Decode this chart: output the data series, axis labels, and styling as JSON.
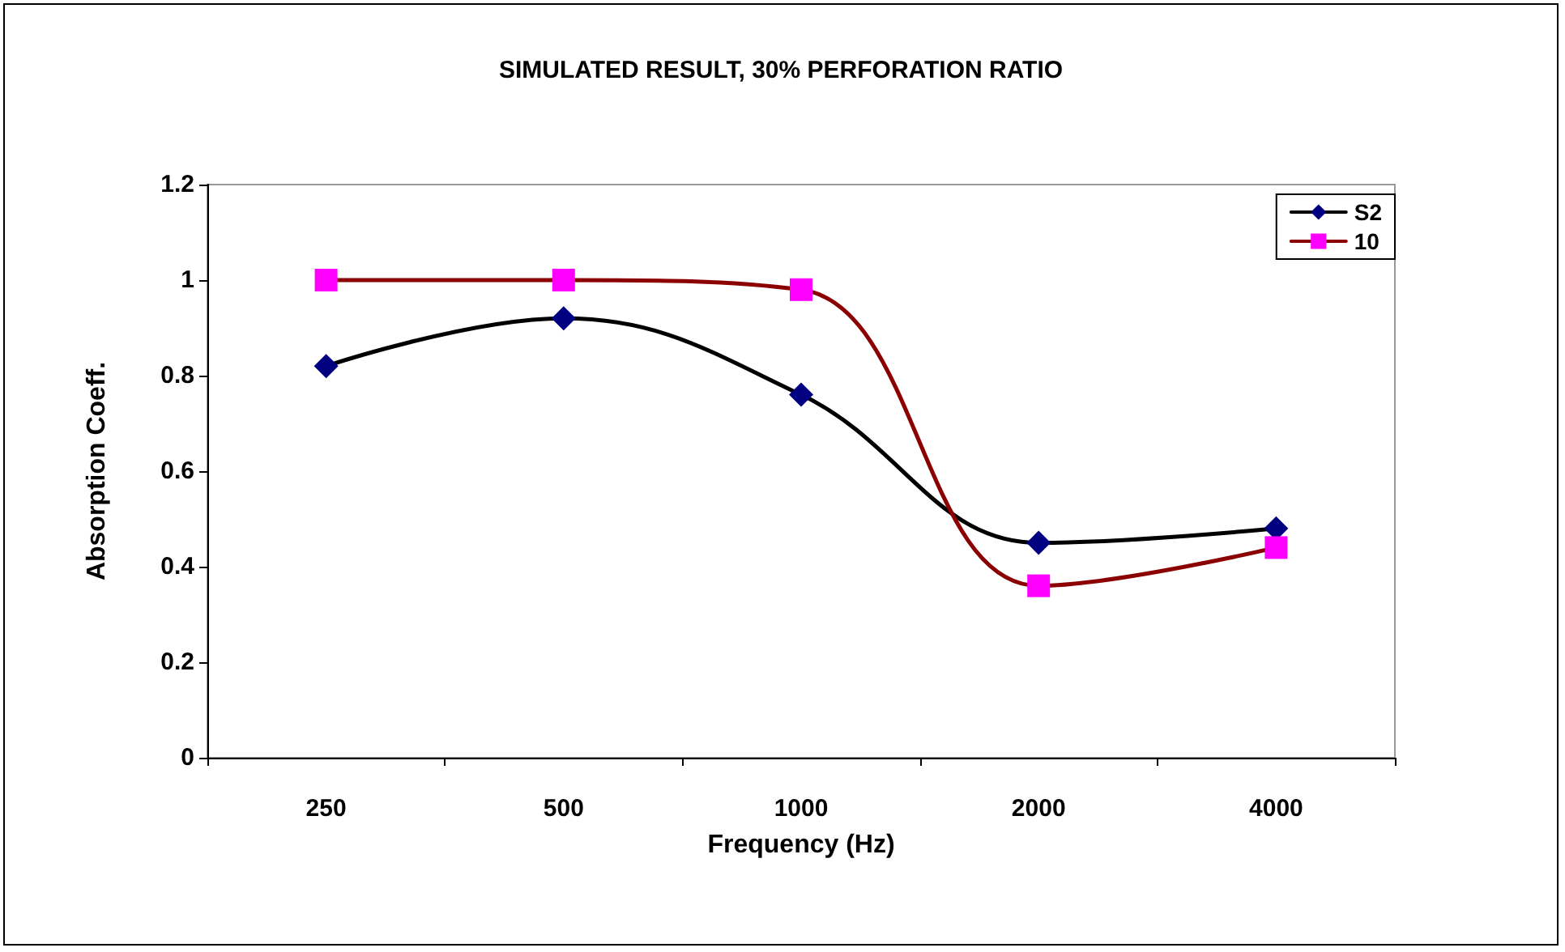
{
  "chart_data": {
    "type": "line",
    "title": "SIMULATED RESULT, 30% PERFORATION RATIO",
    "xlabel": "Frequency (Hz)",
    "ylabel": "Absorption Coeff.",
    "categories": [
      "250",
      "500",
      "1000",
      "2000",
      "4000"
    ],
    "series": [
      {
        "name": "S2",
        "color": "#000080",
        "values": [
          0.82,
          0.92,
          0.76,
          0.45,
          0.48
        ],
        "marker": "diamond"
      },
      {
        "name": "10",
        "color": "#ff00ff",
        "values": [
          1.0,
          1.0,
          0.98,
          0.36,
          0.44
        ],
        "marker": "square"
      }
    ],
    "ylim": [
      0,
      1.2
    ],
    "yticks": [
      0,
      0.2,
      0.4,
      0.6,
      0.8,
      1,
      1.2
    ],
    "grid": false,
    "legend": "top right",
    "line_style": "solid"
  }
}
